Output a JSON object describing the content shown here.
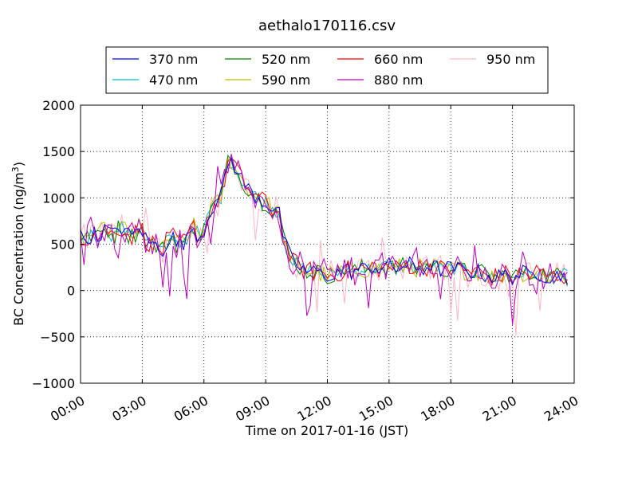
{
  "chart_data": {
    "type": "line",
    "title": "aethalo170116.csv",
    "xlabel": "Time on 2017-01-16 (JST)",
    "ylabel": {
      "main": "BC Concentration (ng/m",
      "superscript": "3",
      "suffix": ")"
    },
    "xlim": [
      "00:00",
      "24:00"
    ],
    "ylim": [
      -1000,
      2000
    ],
    "x_ticks": [
      "00:00",
      "03:00",
      "06:00",
      "09:00",
      "12:00",
      "15:00",
      "18:00",
      "21:00",
      "24:00"
    ],
    "y_ticks": [
      "2000",
      "1500",
      "1000",
      "500",
      "0",
      "−500",
      "−1000"
    ],
    "grid": true,
    "legend_position": "top-center",
    "x_start": "00:00",
    "x_step_minutes": 10,
    "baseline_values": [
      580,
      560,
      560,
      600,
      610,
      560,
      630,
      650,
      660,
      610,
      600,
      670,
      680,
      660,
      600,
      590,
      620,
      680,
      650,
      560,
      520,
      500,
      480,
      450,
      440,
      520,
      560,
      570,
      500,
      530,
      520,
      540,
      640,
      690,
      620,
      580,
      650,
      770,
      890,
      920,
      950,
      1010,
      1200,
      1380,
      1400,
      1350,
      1250,
      1200,
      1150,
      1100,
      1050,
      1020,
      1000,
      960,
      960,
      920,
      880,
      870,
      820,
      620,
      470,
      380,
      300,
      280,
      260,
      230,
      200,
      210,
      200,
      210,
      180,
      170,
      160,
      180,
      140,
      190,
      210,
      230,
      220,
      200,
      210,
      230,
      240,
      220,
      230,
      250,
      260,
      240,
      250,
      260,
      270,
      240,
      230,
      250,
      260,
      270,
      280,
      250,
      240,
      250,
      230,
      260,
      270,
      250,
      240,
      230,
      220,
      240,
      230,
      250,
      220,
      230,
      210,
      220,
      200,
      210,
      200,
      190,
      170,
      160,
      150,
      140,
      150,
      160,
      170,
      180,
      150,
      160,
      180,
      190,
      170,
      160,
      180,
      200,
      190,
      170,
      160,
      150,
      150,
      160,
      170,
      160,
      150
    ],
    "series": [
      {
        "name": "370 nm",
        "color": "#0000ff"
      },
      {
        "name": "470 nm",
        "color": "#00bfbf"
      },
      {
        "name": "520 nm",
        "color": "#008000"
      },
      {
        "name": "590 nm",
        "color": "#bfbf00"
      },
      {
        "name": "660 nm",
        "color": "#ff0000"
      },
      {
        "name": "880 nm",
        "color": "#bf00bf"
      },
      {
        "name": "950 nm",
        "color": "#ffb6c1"
      }
    ]
  }
}
